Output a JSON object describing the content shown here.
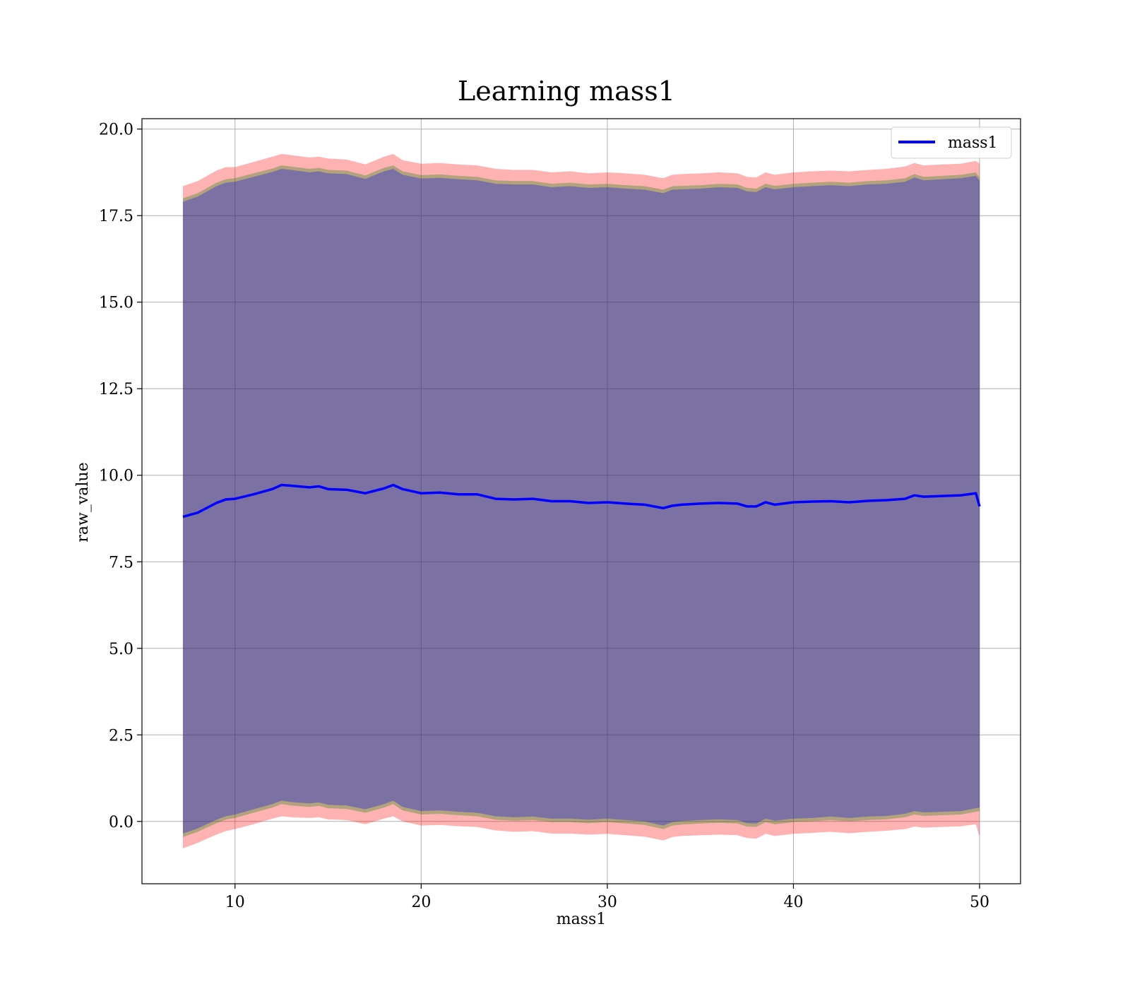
{
  "chart_data": {
    "type": "area",
    "title": "Learning mass1",
    "xlabel": "mass1",
    "ylabel": "raw_value",
    "xlim": [
      5.0,
      52.2
    ],
    "ylim": [
      -1.8,
      20.3
    ],
    "xticks": [
      10,
      20,
      30,
      40,
      50
    ],
    "xtick_labels": [
      "10",
      "20",
      "30",
      "40",
      "50"
    ],
    "yticks": [
      0.0,
      2.5,
      5.0,
      7.5,
      10.0,
      12.5,
      15.0,
      17.5,
      20.0
    ],
    "ytick_labels": [
      "0.0",
      "2.5",
      "5.0",
      "7.5",
      "10.0",
      "12.5",
      "15.0",
      "17.5",
      "20.0"
    ],
    "grid": true,
    "legend": {
      "position": "top-right",
      "entries": [
        "mass1"
      ]
    },
    "x": [
      7.2,
      8,
      9,
      9.5,
      10,
      11,
      12,
      12.5,
      13,
      14,
      14.5,
      15,
      16,
      17,
      18,
      18.5,
      19,
      20,
      21,
      22,
      23,
      24,
      25,
      26,
      27,
      28,
      29,
      30,
      31,
      32,
      33,
      33.5,
      34,
      35,
      36,
      37,
      37.5,
      38,
      38.5,
      39,
      40,
      41,
      42,
      43,
      44,
      45,
      46,
      46.5,
      47,
      48,
      49,
      49.8,
      50
    ],
    "series": [
      {
        "name": "mass1",
        "color": "#0000ff",
        "values": [
          8.8,
          8.92,
          9.2,
          9.3,
          9.32,
          9.45,
          9.6,
          9.72,
          9.7,
          9.65,
          9.68,
          9.6,
          9.58,
          9.48,
          9.62,
          9.72,
          9.6,
          9.48,
          9.5,
          9.45,
          9.45,
          9.32,
          9.3,
          9.32,
          9.25,
          9.25,
          9.2,
          9.22,
          9.18,
          9.15,
          9.05,
          9.12,
          9.15,
          9.18,
          9.2,
          9.18,
          9.1,
          9.1,
          9.22,
          9.15,
          9.22,
          9.24,
          9.25,
          9.22,
          9.26,
          9.28,
          9.32,
          9.42,
          9.38,
          9.4,
          9.42,
          9.48,
          9.1
        ]
      }
    ],
    "bands": [
      {
        "color": "#ff0000",
        "opacity": 0.3,
        "upper": [
          18.35,
          18.5,
          18.8,
          18.9,
          18.9,
          19.05,
          19.2,
          19.28,
          19.25,
          19.18,
          19.2,
          19.15,
          19.12,
          18.98,
          19.2,
          19.28,
          19.1,
          19.0,
          19.02,
          18.98,
          18.95,
          18.85,
          18.82,
          18.82,
          18.75,
          18.78,
          18.72,
          18.75,
          18.72,
          18.68,
          18.58,
          18.68,
          18.7,
          18.72,
          18.75,
          18.72,
          18.62,
          18.6,
          18.75,
          18.68,
          18.75,
          18.78,
          18.8,
          18.78,
          18.82,
          18.85,
          18.92,
          19.02,
          18.95,
          18.98,
          19.0,
          19.08,
          19.0
        ],
        "lower": [
          -0.78,
          -0.62,
          -0.38,
          -0.28,
          -0.22,
          -0.08,
          0.08,
          0.15,
          0.12,
          0.1,
          0.12,
          0.06,
          0.04,
          -0.08,
          0.08,
          0.15,
          0.0,
          -0.12,
          -0.1,
          -0.14,
          -0.16,
          -0.26,
          -0.3,
          -0.28,
          -0.35,
          -0.35,
          -0.38,
          -0.36,
          -0.4,
          -0.44,
          -0.55,
          -0.45,
          -0.42,
          -0.4,
          -0.38,
          -0.4,
          -0.48,
          -0.5,
          -0.36,
          -0.42,
          -0.36,
          -0.33,
          -0.3,
          -0.34,
          -0.3,
          -0.27,
          -0.22,
          -0.15,
          -0.18,
          -0.16,
          -0.14,
          -0.08,
          -0.45
        ]
      },
      {
        "color": "#008000",
        "opacity": 0.3,
        "upper": [
          18.0,
          18.15,
          18.45,
          18.55,
          18.58,
          18.72,
          18.86,
          18.95,
          18.92,
          18.85,
          18.88,
          18.82,
          18.8,
          18.66,
          18.88,
          18.95,
          18.78,
          18.67,
          18.69,
          18.65,
          18.62,
          18.52,
          18.5,
          18.5,
          18.42,
          18.45,
          18.4,
          18.42,
          18.38,
          18.35,
          18.25,
          18.35,
          18.36,
          18.38,
          18.42,
          18.4,
          18.3,
          18.28,
          18.42,
          18.36,
          18.42,
          18.45,
          18.48,
          18.45,
          18.5,
          18.52,
          18.58,
          18.7,
          18.62,
          18.65,
          18.68,
          18.75,
          18.6
        ],
        "lower": [
          -0.45,
          -0.3,
          -0.05,
          0.05,
          0.1,
          0.25,
          0.4,
          0.5,
          0.46,
          0.42,
          0.45,
          0.38,
          0.36,
          0.25,
          0.4,
          0.5,
          0.32,
          0.2,
          0.22,
          0.18,
          0.15,
          0.05,
          0.02,
          0.04,
          -0.02,
          -0.02,
          -0.05,
          -0.02,
          -0.06,
          -0.1,
          -0.22,
          -0.12,
          -0.09,
          -0.06,
          -0.04,
          -0.06,
          -0.15,
          -0.16,
          -0.02,
          -0.08,
          -0.02,
          0.0,
          0.04,
          0.0,
          0.04,
          0.06,
          0.12,
          0.2,
          0.16,
          0.18,
          0.2,
          0.28,
          0.3
        ]
      },
      {
        "color": "#0000ff",
        "opacity": 0.3,
        "upper": [
          17.9,
          18.05,
          18.35,
          18.45,
          18.48,
          18.62,
          18.76,
          18.85,
          18.82,
          18.75,
          18.78,
          18.72,
          18.7,
          18.56,
          18.78,
          18.85,
          18.68,
          18.57,
          18.59,
          18.55,
          18.52,
          18.42,
          18.4,
          18.4,
          18.32,
          18.35,
          18.3,
          18.32,
          18.28,
          18.25,
          18.15,
          18.25,
          18.26,
          18.28,
          18.32,
          18.3,
          18.2,
          18.18,
          18.32,
          18.26,
          18.32,
          18.35,
          18.38,
          18.35,
          18.4,
          18.42,
          18.48,
          18.6,
          18.52,
          18.55,
          18.58,
          18.65,
          18.5
        ],
        "lower": [
          -0.35,
          -0.2,
          0.05,
          0.15,
          0.2,
          0.35,
          0.5,
          0.6,
          0.56,
          0.52,
          0.55,
          0.48,
          0.46,
          0.35,
          0.5,
          0.6,
          0.42,
          0.3,
          0.32,
          0.28,
          0.25,
          0.15,
          0.12,
          0.14,
          0.08,
          0.08,
          0.05,
          0.08,
          0.04,
          0.0,
          -0.12,
          -0.02,
          0.01,
          0.04,
          0.06,
          0.04,
          -0.05,
          -0.06,
          0.08,
          0.02,
          0.08,
          0.1,
          0.14,
          0.1,
          0.14,
          0.16,
          0.22,
          0.3,
          0.26,
          0.28,
          0.3,
          0.38,
          0.4
        ]
      }
    ]
  }
}
